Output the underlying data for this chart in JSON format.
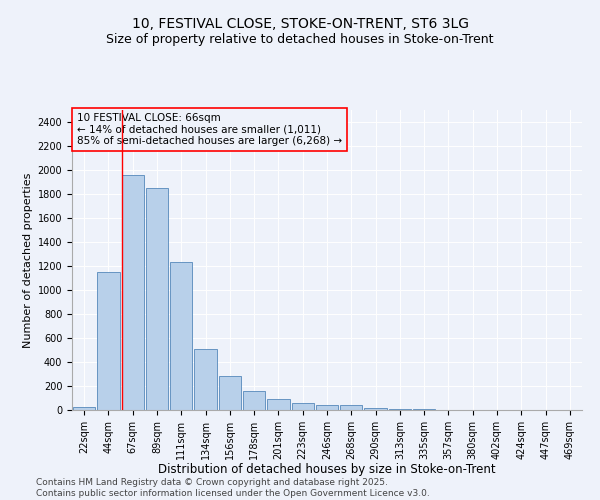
{
  "title1": "10, FESTIVAL CLOSE, STOKE-ON-TRENT, ST6 3LG",
  "title2": "Size of property relative to detached houses in Stoke-on-Trent",
  "xlabel": "Distribution of detached houses by size in Stoke-on-Trent",
  "ylabel": "Number of detached properties",
  "categories": [
    "22sqm",
    "44sqm",
    "67sqm",
    "89sqm",
    "111sqm",
    "134sqm",
    "156sqm",
    "178sqm",
    "201sqm",
    "223sqm",
    "246sqm",
    "268sqm",
    "290sqm",
    "313sqm",
    "335sqm",
    "357sqm",
    "380sqm",
    "402sqm",
    "424sqm",
    "447sqm",
    "469sqm"
  ],
  "values": [
    25,
    1150,
    1960,
    1850,
    1230,
    510,
    280,
    155,
    90,
    55,
    45,
    40,
    15,
    5,
    5,
    3,
    2,
    1,
    1,
    1,
    1
  ],
  "bar_color": "#b8d0ea",
  "bar_edge_color": "#5588bb",
  "annotation_text": "10 FESTIVAL CLOSE: 66sqm\n← 14% of detached houses are smaller (1,011)\n85% of semi-detached houses are larger (6,268) →",
  "vline_x": 1.575,
  "ylim": [
    0,
    2500
  ],
  "yticks": [
    0,
    200,
    400,
    600,
    800,
    1000,
    1200,
    1400,
    1600,
    1800,
    2000,
    2200,
    2400
  ],
  "bg_color": "#eef2fa",
  "footer": "Contains HM Land Registry data © Crown copyright and database right 2025.\nContains public sector information licensed under the Open Government Licence v3.0.",
  "title1_fontsize": 10,
  "title2_fontsize": 9,
  "xlabel_fontsize": 8.5,
  "ylabel_fontsize": 8,
  "tick_fontsize": 7,
  "annotation_fontsize": 7.5,
  "footer_fontsize": 6.5
}
